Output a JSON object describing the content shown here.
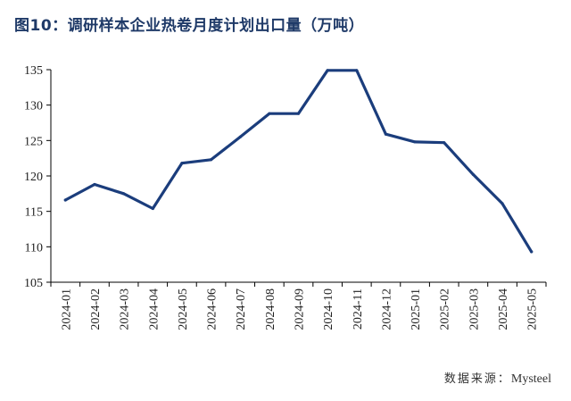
{
  "title": "图10：调研样本企业热卷月度计划出口量（万吨）",
  "source": {
    "label": "数据来源：",
    "value": "Mysteel"
  },
  "chart_data": {
    "type": "line",
    "title": "图10：调研样本企业热卷月度计划出口量（万吨）",
    "xlabel": "",
    "ylabel": "",
    "categories": [
      "2024-01",
      "2024-02",
      "2024-03",
      "2024-04",
      "2024-05",
      "2024-06",
      "2024-07",
      "2024-08",
      "2024-09",
      "2024-10",
      "2024-11",
      "2024-12",
      "2025-01",
      "2025-02",
      "2025-03",
      "2025-04",
      "2025-05"
    ],
    "series": [
      {
        "values": [
          116.6,
          118.8,
          117.5,
          115.4,
          121.8,
          122.3,
          125.5,
          128.8,
          128.8,
          134.9,
          134.9,
          125.9,
          124.8,
          124.7,
          120.2,
          116.1,
          109.3
        ]
      }
    ],
    "ylim": [
      105,
      135
    ],
    "yticks": [
      105,
      110,
      115,
      120,
      125,
      130,
      135
    ],
    "grid": false,
    "legend": "none",
    "line_color": "#1b3d7c",
    "axis_color": "#000000"
  }
}
